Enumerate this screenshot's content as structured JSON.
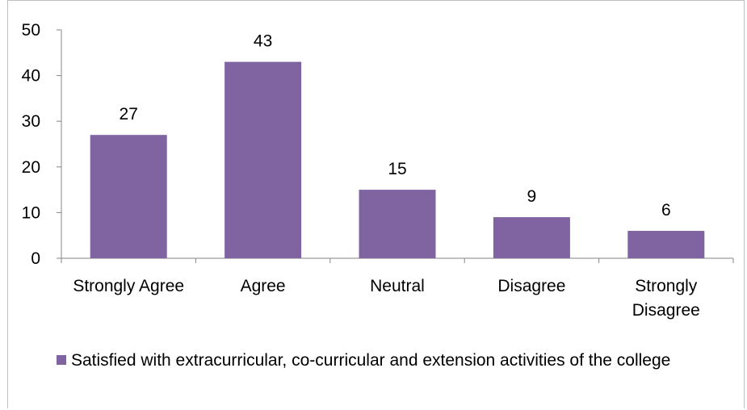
{
  "chart_data": {
    "type": "bar",
    "categories": [
      "Strongly Agree",
      "Agree",
      "Neutral",
      "Disagree",
      "Strongly Disagree"
    ],
    "category_lines": [
      [
        "Strongly Agree"
      ],
      [
        "Agree"
      ],
      [
        "Neutral"
      ],
      [
        "Disagree"
      ],
      [
        "Strongly",
        "Disagree"
      ]
    ],
    "values": [
      27,
      43,
      15,
      9,
      6
    ],
    "data_labels": [
      "27",
      "43",
      "15",
      "9",
      "6"
    ],
    "yticks": [
      "0",
      "10",
      "20",
      "30",
      "40",
      "50"
    ],
    "ylim": [
      0,
      50
    ],
    "grid": false,
    "legend_position": "bottom",
    "series": [
      {
        "name": "Satisfied with extracurricular, co-curricular and extension activities of the college",
        "values": [
          27,
          43,
          15,
          9,
          6
        ],
        "color": "#8064a2"
      }
    ]
  },
  "legend": {
    "label": "Satisfied with extracurricular, co-curricular and extension activities of the college"
  }
}
